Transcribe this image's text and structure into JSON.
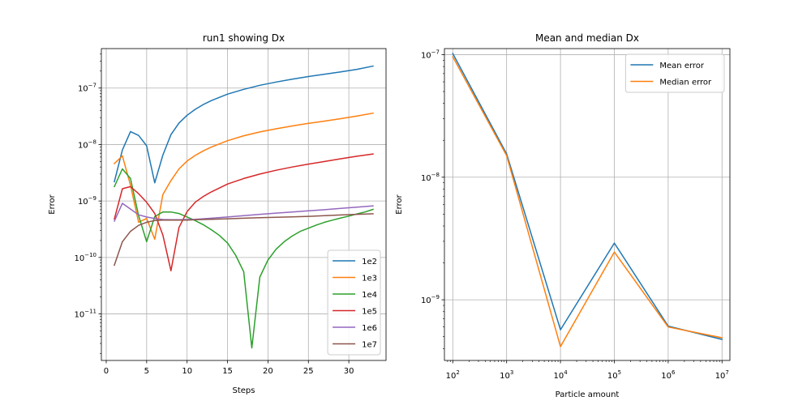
{
  "chart_data": [
    {
      "type": "line",
      "title": "run1 showing Dx",
      "xlabel": "Steps",
      "ylabel": "Error",
      "xscale": "linear",
      "yscale": "log",
      "xlim": [
        -0.6,
        34.6
      ],
      "ylim": [
        1.5e-12,
        5e-07
      ],
      "xticks": [
        0,
        5,
        10,
        15,
        20,
        25,
        30
      ],
      "xtick_labels": [
        "0",
        "5",
        "10",
        "15",
        "20",
        "25",
        "30"
      ],
      "yticks": [
        1e-11,
        1e-10,
        1e-09,
        1e-08,
        1e-07
      ],
      "ytick_labels": [
        {
          "base": "10",
          "exp": "−11"
        },
        {
          "base": "10",
          "exp": "−10"
        },
        {
          "base": "10",
          "exp": "−9"
        },
        {
          "base": "10",
          "exp": "−8"
        },
        {
          "base": "10",
          "exp": "−7"
        }
      ],
      "grid": true,
      "legend_position": "lower-right",
      "series": [
        {
          "name": "1e2",
          "color": "#1f77b4",
          "x": [
            1,
            2,
            3,
            4,
            5,
            6,
            7,
            8,
            9,
            10,
            11,
            12,
            13,
            15,
            17,
            19,
            21,
            23,
            25,
            27,
            29,
            31,
            33
          ],
          "y": [
            2.2e-09,
            8e-09,
            1.7e-08,
            1.45e-08,
            9.5e-09,
            2.1e-09,
            6.5e-09,
            1.5e-08,
            2.4e-08,
            3.3e-08,
            4.2e-08,
            5.1e-08,
            6e-08,
            7.8e-08,
            9.5e-08,
            1.12e-07,
            1.28e-07,
            1.44e-07,
            1.6e-07,
            1.76e-07,
            1.94e-07,
            2.15e-07,
            2.45e-07
          ]
        },
        {
          "name": "1e3",
          "color": "#ff7f0e",
          "x": [
            1,
            2,
            3,
            4,
            5,
            6,
            7,
            8,
            9,
            10,
            11,
            12,
            13,
            15,
            17,
            19,
            21,
            23,
            25,
            27,
            29,
            31,
            33
          ],
          "y": [
            4.6e-09,
            6.3e-09,
            1.9e-09,
            4.2e-10,
            4.9e-10,
            2.1e-10,
            1.3e-09,
            2.3e-09,
            3.7e-09,
            5.1e-09,
            6.4e-09,
            7.7e-09,
            9e-09,
            1.17e-08,
            1.43e-08,
            1.67e-08,
            1.9e-08,
            2.13e-08,
            2.37e-08,
            2.6e-08,
            2.87e-08,
            3.2e-08,
            3.6e-08
          ]
        },
        {
          "name": "1e4",
          "color": "#2ca02c",
          "x": [
            1,
            2,
            3,
            4,
            5,
            6,
            7,
            8,
            9,
            10,
            11,
            12,
            13,
            14,
            15,
            16,
            17,
            18,
            19,
            20,
            21,
            22,
            23,
            24,
            25,
            26,
            27,
            28,
            29,
            30,
            31,
            32,
            33
          ],
          "y": [
            1.8e-09,
            3.7e-09,
            2.5e-09,
            5.5e-10,
            1.9e-10,
            5.3e-10,
            6.4e-10,
            6.4e-10,
            6e-10,
            5.2e-10,
            4.5e-10,
            3.8e-10,
            3.1e-10,
            2.45e-10,
            1.8e-10,
            1.1e-10,
            5.6e-11,
            2.5e-12,
            4.5e-11,
            9e-11,
            1.4e-10,
            1.9e-10,
            2.4e-10,
            2.9e-10,
            3.3e-10,
            3.75e-10,
            4.2e-10,
            4.6e-10,
            5e-10,
            5.4e-10,
            5.9e-10,
            6.4e-10,
            7.1e-10
          ]
        },
        {
          "name": "1e5",
          "color": "#d62728",
          "x": [
            1,
            2,
            3,
            4,
            5,
            6,
            7,
            8,
            9,
            10,
            11,
            12,
            13,
            15,
            17,
            19,
            21,
            23,
            25,
            27,
            29,
            31,
            33
          ],
          "y": [
            4.8e-10,
            1.65e-09,
            1.8e-09,
            1.35e-09,
            9.5e-10,
            6e-10,
            2.5e-10,
            5.8e-11,
            3.4e-10,
            6.5e-10,
            9.5e-10,
            1.2e-09,
            1.45e-09,
            2e-09,
            2.5e-09,
            3e-09,
            3.5e-09,
            4e-09,
            4.5e-09,
            5e-09,
            5.6e-09,
            6.2e-09,
            6.8e-09
          ]
        },
        {
          "name": "1e6",
          "color": "#9467bd",
          "x": [
            1,
            2,
            3,
            4,
            5,
            6,
            7,
            8,
            9,
            10,
            11,
            12,
            13,
            15,
            17,
            19,
            21,
            23,
            25,
            27,
            29,
            31,
            33
          ],
          "y": [
            4.4e-10,
            9.1e-10,
            7.2e-10,
            5.7e-10,
            5.2e-10,
            4.9e-10,
            4.7e-10,
            4.65e-10,
            4.65e-10,
            4.7e-10,
            4.75e-10,
            4.85e-10,
            4.95e-10,
            5.2e-10,
            5.5e-10,
            5.8e-10,
            6.1e-10,
            6.4e-10,
            6.7e-10,
            7e-10,
            7.4e-10,
            7.8e-10,
            8.2e-10
          ]
        },
        {
          "name": "1e7",
          "color": "#8c564b",
          "x": [
            1,
            2,
            3,
            4,
            5,
            6,
            7,
            8,
            9,
            10,
            11,
            12,
            13,
            15,
            17,
            19,
            21,
            23,
            25,
            27,
            29,
            31,
            33
          ],
          "y": [
            7.3e-11,
            1.9e-10,
            2.9e-10,
            3.7e-10,
            4.2e-10,
            4.5e-10,
            4.6e-10,
            4.6e-10,
            4.6e-10,
            4.6e-10,
            4.65e-10,
            4.7e-10,
            4.75e-10,
            4.85e-10,
            4.95e-10,
            5.05e-10,
            5.15e-10,
            5.25e-10,
            5.35e-10,
            5.5e-10,
            5.65e-10,
            5.8e-10,
            5.95e-10
          ]
        }
      ]
    },
    {
      "type": "line",
      "title": "Mean and median Dx",
      "xlabel": "Particle amount",
      "ylabel": "Error",
      "xscale": "log",
      "yscale": "log",
      "xlim": [
        70,
        14000000
      ],
      "ylim": [
        3.2e-10,
        1.12e-07
      ],
      "xticks": [
        100,
        1000,
        10000,
        100000,
        1000000,
        10000000
      ],
      "xtick_labels": [
        {
          "base": "10",
          "exp": "2"
        },
        {
          "base": "10",
          "exp": "3"
        },
        {
          "base": "10",
          "exp": "4"
        },
        {
          "base": "10",
          "exp": "5"
        },
        {
          "base": "10",
          "exp": "6"
        },
        {
          "base": "10",
          "exp": "7"
        }
      ],
      "yticks": [
        1e-09,
        1e-08,
        1e-07
      ],
      "ytick_labels": [
        {
          "base": "10",
          "exp": "−9"
        },
        {
          "base": "10",
          "exp": "−8"
        },
        {
          "base": "10",
          "exp": "−7"
        }
      ],
      "grid": true,
      "legend_position": "upper-right",
      "series": [
        {
          "name": "Mean error",
          "color": "#1f77b4",
          "x": [
            100,
            1000,
            10000,
            100000,
            1000000,
            10000000
          ],
          "y": [
            1.02e-07,
            1.55e-08,
            5.7e-10,
            2.9e-09,
            6.1e-10,
            4.75e-10
          ]
        },
        {
          "name": "Median error",
          "color": "#ff7f0e",
          "x": [
            100,
            1000,
            10000,
            100000,
            1000000,
            10000000
          ],
          "y": [
            9.6e-08,
            1.5e-08,
            4.15e-10,
            2.45e-09,
            6e-10,
            4.9e-10
          ]
        }
      ]
    }
  ]
}
